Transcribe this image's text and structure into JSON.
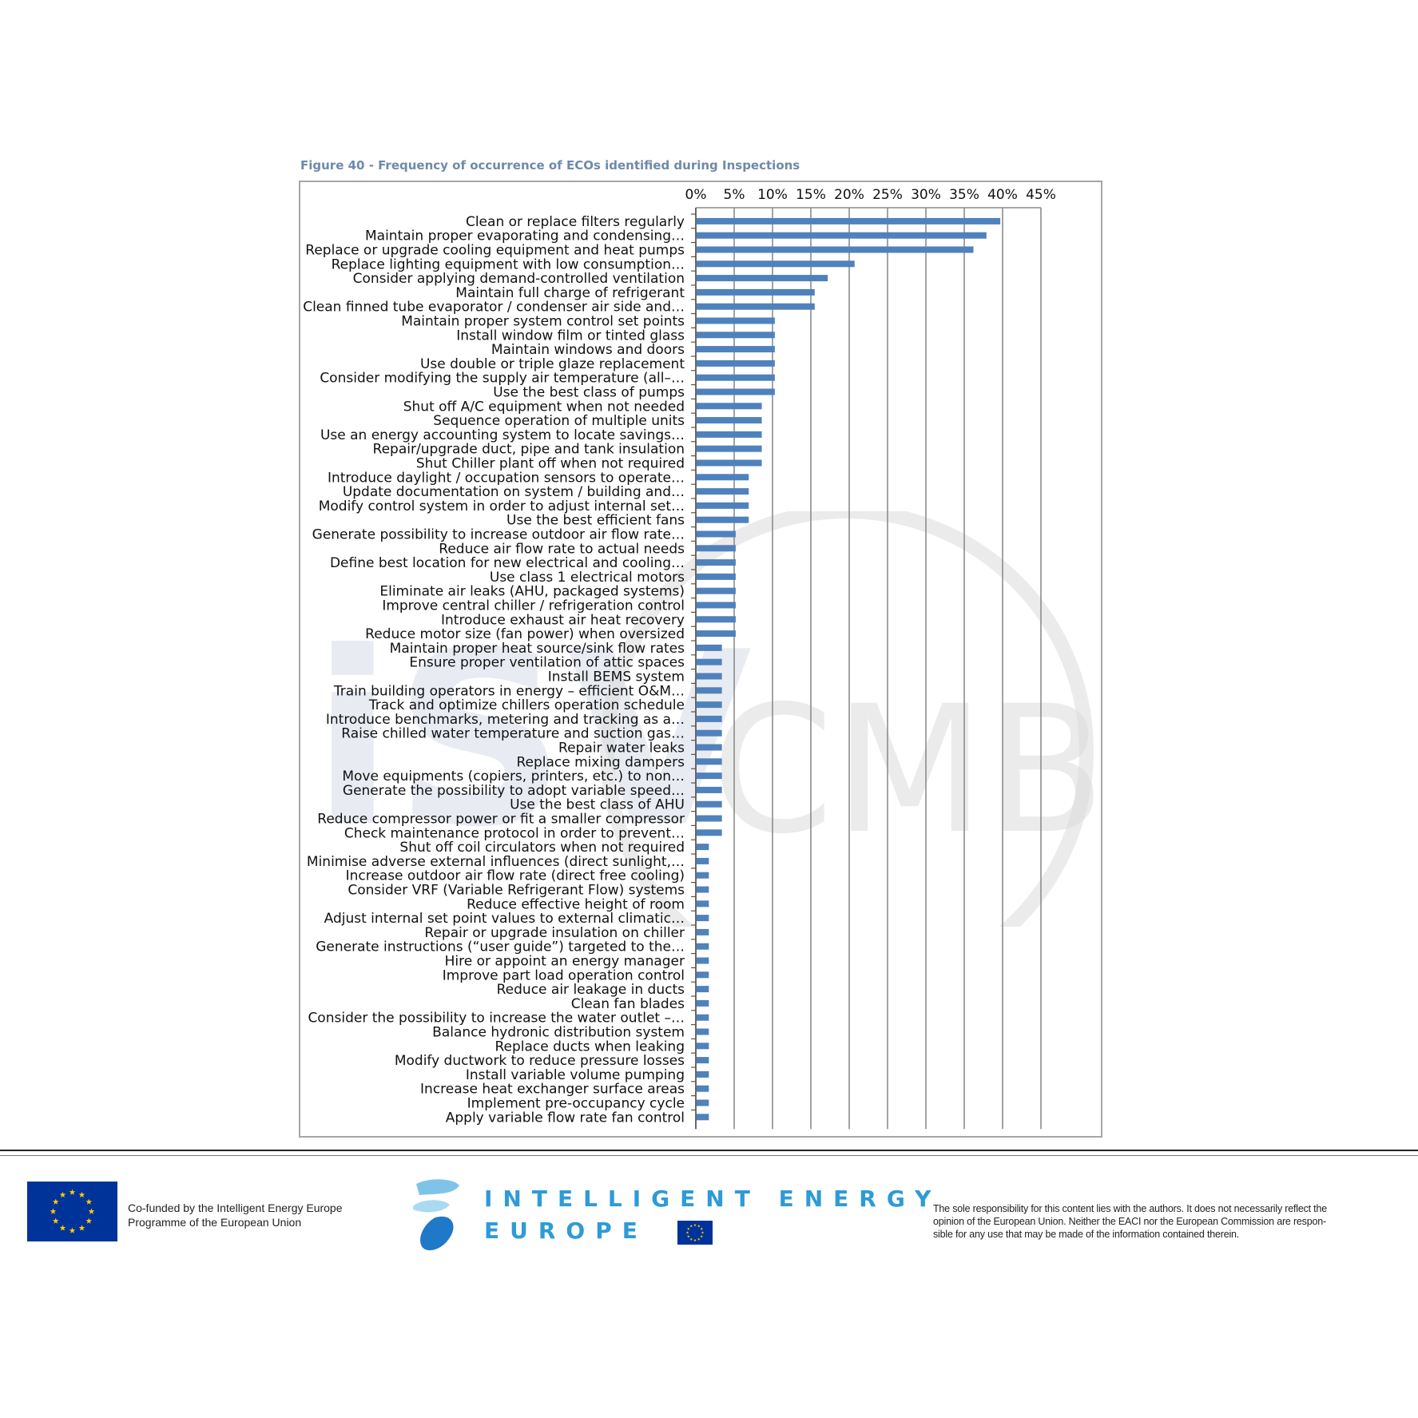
{
  "figure_title": "Figure 40 - Frequency of occurrence of ECOs identified during Inspections",
  "footer": {
    "cofund_line1": "Co-funded by the Intelligent Energy Europe",
    "cofund_line2": "Programme of the European Union",
    "iee_line1": "INTELLIGENT ENERGY",
    "iee_line2": "EUROPE",
    "disclaimer_line1": "The sole responsibility for this content lies with the authors. It does not necessarily reflect the",
    "disclaimer_line2": "opinion of the European Union. Neither the EACI nor the European Commission are respon-",
    "disclaimer_line3": "sible for any use that may be made of the information contained therein."
  },
  "watermark_text": "iSM CMB",
  "colors": {
    "bar": "#4f81bd",
    "grid": "#8c8c8c",
    "title": "#6f8aa8",
    "eu_blue": "#003399",
    "eu_star": "#ffcc00",
    "iee_blue": "#2e9bd6"
  },
  "chart_data": {
    "type": "bar",
    "orientation": "horizontal",
    "title": "Figure 40 - Frequency of occurrence of ECOs identified during Inspections",
    "xlabel": "",
    "ylabel": "",
    "xlim": [
      0,
      45
    ],
    "x_axis_position": "top",
    "xticks": [
      "0%",
      "5%",
      "10%",
      "15%",
      "20%",
      "25%",
      "30%",
      "35%",
      "40%",
      "45%"
    ],
    "grid": true,
    "categories": [
      "Clean or replace filters regularly",
      "Maintain proper evaporating and condensing…",
      "Replace or upgrade cooling equipment and heat pumps",
      "Replace lighting equipment with low consumption…",
      "Consider applying demand-controlled ventilation",
      "Maintain full charge of refrigerant",
      "Clean finned tube evaporator / condenser air side and…",
      "Maintain proper system control set points",
      "Install window film or tinted glass",
      "Maintain windows and doors",
      "Use double or triple glaze replacement",
      "Consider modifying the supply air temperature (all–…",
      "Use the best class of pumps",
      "Shut off A/C equipment when not needed",
      "Sequence operation of multiple units",
      "Use an energy accounting system to locate savings…",
      "Repair/upgrade duct, pipe and tank insulation",
      "Shut Chiller plant off when not required",
      "Introduce daylight / occupation sensors to operate…",
      "Update documentation on system / building and…",
      "Modify control system in order to adjust internal set…",
      "Use the best efficient fans",
      "Generate possibility to increase outdoor air flow rate…",
      "Reduce air flow rate to actual needs",
      "Define best location for new electrical and cooling…",
      "Use class 1 electrical motors",
      "Eliminate air leaks (AHU, packaged systems)",
      "Improve central chiller / refrigeration control",
      "Introduce exhaust air heat recovery",
      "Reduce motor size (fan power) when oversized",
      "Maintain proper heat source/sink flow rates",
      "Ensure proper ventilation of attic spaces",
      "Install BEMS system",
      "Train building operators in energy – efficient O&M…",
      "Track and optimize chillers operation schedule",
      "Introduce benchmarks, metering and tracking as a…",
      "Raise chilled water temperature and suction gas…",
      "Repair water leaks",
      "Replace mixing dampers",
      "Move equipments (copiers, printers, etc.) to non…",
      "Generate the possibility to adopt variable speed…",
      "Use the best class of AHU",
      "Reduce compressor power or fit a smaller compressor",
      "Check maintenance protocol in order to prevent…",
      "Shut off coil circulators when not required",
      "Minimise adverse external influences (direct sunlight,…",
      "Increase outdoor air flow rate (direct free cooling)",
      "Consider VRF (Variable Refrigerant Flow) systems",
      "Reduce effective height of room",
      "Adjust internal set point values to external climatic…",
      "Repair or upgrade insulation on chiller",
      "Generate instructions (“user guide”) targeted to the…",
      "Hire or appoint an energy manager",
      "Improve part load operation control",
      "Reduce air leakage in ducts",
      "Clean fan blades",
      "Consider the possibility to increase the water outlet –…",
      "Balance hydronic distribution system",
      "Replace ducts when leaking",
      "Modify ductwork to reduce pressure losses",
      "Install variable volume pumping",
      "Increase heat exchanger surface areas",
      "Implement pre-occupancy cycle",
      "Apply variable flow rate fan control"
    ],
    "values": [
      39.7,
      37.9,
      36.2,
      20.7,
      17.2,
      15.5,
      15.5,
      10.3,
      10.3,
      10.3,
      10.3,
      10.3,
      10.3,
      8.6,
      8.6,
      8.6,
      8.6,
      8.6,
      6.9,
      6.9,
      6.9,
      6.9,
      5.2,
      5.2,
      5.2,
      5.2,
      5.2,
      5.2,
      5.2,
      5.2,
      3.4,
      3.4,
      3.4,
      3.4,
      3.4,
      3.4,
      3.4,
      3.4,
      3.4,
      3.4,
      3.4,
      3.4,
      3.4,
      3.4,
      1.7,
      1.7,
      1.7,
      1.7,
      1.7,
      1.7,
      1.7,
      1.7,
      1.7,
      1.7,
      1.7,
      1.7,
      1.7,
      1.7,
      1.7,
      1.7,
      1.7,
      1.7,
      1.7,
      1.7
    ]
  }
}
